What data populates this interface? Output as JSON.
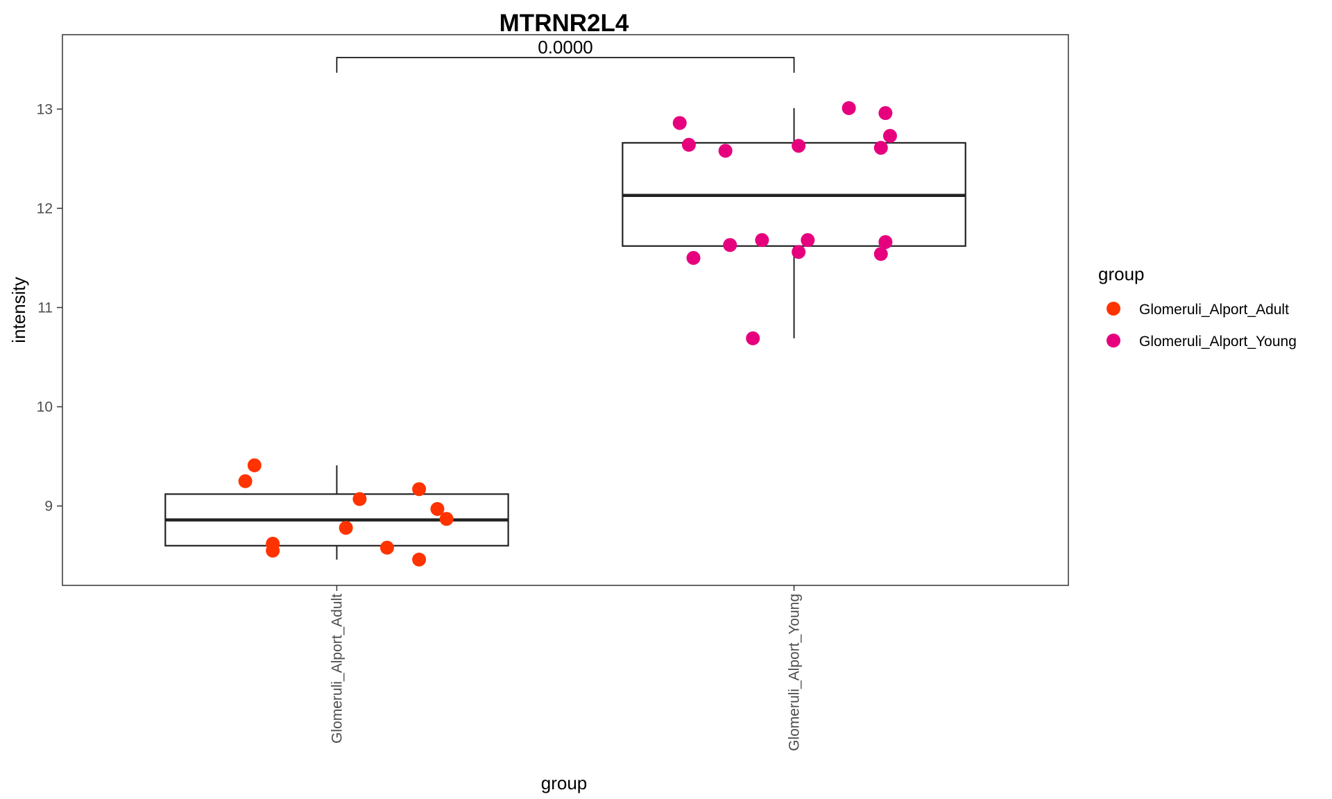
{
  "chart_data": {
    "type": "box",
    "title": "MTRNR2L4",
    "xlabel": "group",
    "ylabel": "intensity",
    "ylim": [
      8.2,
      13.75
    ],
    "y_ticks": [
      9,
      10,
      11,
      12,
      13
    ],
    "categories": [
      "Glomeruli_Alport_Adult",
      "Glomeruli_Alport_Young"
    ],
    "legend": {
      "title": "group",
      "position": "right",
      "items": [
        {
          "label": "Glomeruli_Alport_Adult",
          "color": "#ff3300"
        },
        {
          "label": "Glomeruli_Alport_Young",
          "color": "#e6007e"
        }
      ]
    },
    "grid": false,
    "boxes": [
      {
        "group": "Glomeruli_Alport_Adult",
        "whisker_low": 8.46,
        "q1": 8.6,
        "median": 8.86,
        "q3": 9.12,
        "whisker_high": 9.41
      },
      {
        "group": "Glomeruli_Alport_Young",
        "whisker_low": 10.69,
        "q1": 11.62,
        "median": 12.13,
        "q3": 12.66,
        "whisker_high": 13.01
      }
    ],
    "series": [
      {
        "group": "Glomeruli_Alport_Adult",
        "color": "#ff3300",
        "points": [
          {
            "x": 0.82,
            "y": 9.41
          },
          {
            "x": 0.8,
            "y": 9.25
          },
          {
            "x": 1.05,
            "y": 9.07
          },
          {
            "x": 1.18,
            "y": 9.17
          },
          {
            "x": 1.22,
            "y": 8.97
          },
          {
            "x": 1.24,
            "y": 8.87
          },
          {
            "x": 1.02,
            "y": 8.78
          },
          {
            "x": 0.86,
            "y": 8.62
          },
          {
            "x": 0.86,
            "y": 8.55
          },
          {
            "x": 1.11,
            "y": 8.58
          },
          {
            "x": 1.18,
            "y": 8.46
          }
        ]
      },
      {
        "group": "Glomeruli_Alport_Young",
        "color": "#e6007e",
        "points": [
          {
            "x": 1.75,
            "y": 12.86
          },
          {
            "x": 1.77,
            "y": 12.64
          },
          {
            "x": 1.85,
            "y": 12.58
          },
          {
            "x": 2.01,
            "y": 12.63
          },
          {
            "x": 2.12,
            "y": 13.01
          },
          {
            "x": 2.2,
            "y": 12.96
          },
          {
            "x": 2.21,
            "y": 12.73
          },
          {
            "x": 2.19,
            "y": 12.61
          },
          {
            "x": 1.78,
            "y": 11.5
          },
          {
            "x": 1.86,
            "y": 11.63
          },
          {
            "x": 1.93,
            "y": 11.68
          },
          {
            "x": 2.03,
            "y": 11.68
          },
          {
            "x": 2.01,
            "y": 11.56
          },
          {
            "x": 2.2,
            "y": 11.66
          },
          {
            "x": 2.19,
            "y": 11.54
          },
          {
            "x": 1.91,
            "y": 10.69
          }
        ]
      }
    ],
    "annotations": [
      {
        "type": "bracket",
        "from": "Glomeruli_Alport_Adult",
        "to": "Glomeruli_Alport_Young",
        "y": 13.52,
        "label": "0.0000"
      }
    ]
  }
}
